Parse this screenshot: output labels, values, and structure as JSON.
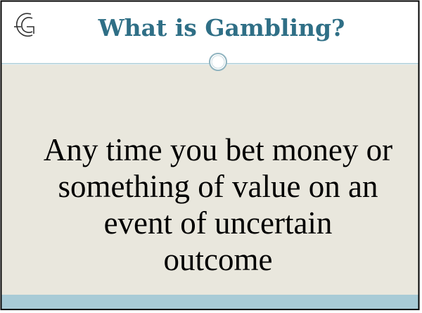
{
  "slide": {
    "title": "What is Gambling?",
    "body_lines": [
      "Any time you bet money or",
      "something of value on an",
      "event of uncertain",
      "outcome"
    ]
  }
}
